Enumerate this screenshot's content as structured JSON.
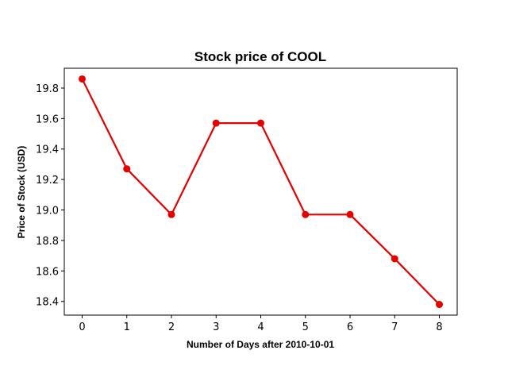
{
  "chart_data": {
    "type": "line",
    "title": "Stock price of COOL",
    "xlabel": "Number of Days after 2010-10-01",
    "ylabel": "Price of Stock (USD)",
    "x": [
      0,
      1,
      2,
      3,
      4,
      5,
      6,
      7,
      8
    ],
    "series": [
      {
        "values": [
          19.86,
          19.27,
          18.97,
          19.57,
          19.57,
          18.97,
          18.97,
          18.68,
          18.38
        ],
        "color": "#e60000",
        "marker": "circle"
      }
    ],
    "xlim": [
      -0.4,
      8.4
    ],
    "ylim": [
      18.31,
      19.93
    ],
    "xticks": [
      "0",
      "1",
      "2",
      "3",
      "4",
      "5",
      "6",
      "7",
      "8"
    ],
    "yticks": [
      "18.4",
      "18.6",
      "18.8",
      "19.0",
      "19.2",
      "19.4",
      "19.6",
      "19.8"
    ],
    "grid": false
  }
}
